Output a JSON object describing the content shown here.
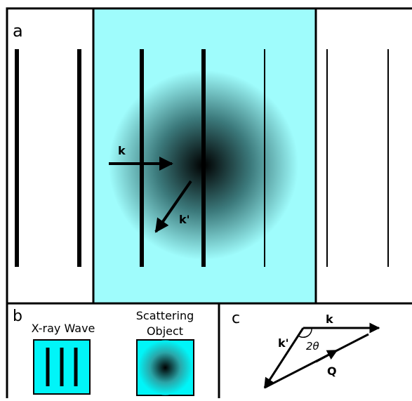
{
  "panel_a": {
    "label": "a",
    "k": "k",
    "k_prime": "k'"
  },
  "panel_b": {
    "label": "b",
    "wave_caption": "X-ray Wave",
    "object_caption": [
      "Scattering",
      "Object"
    ]
  },
  "panel_c": {
    "label": "c",
    "k": "k",
    "k_prime": "k'",
    "angle": "2θ",
    "q": "Q"
  }
}
